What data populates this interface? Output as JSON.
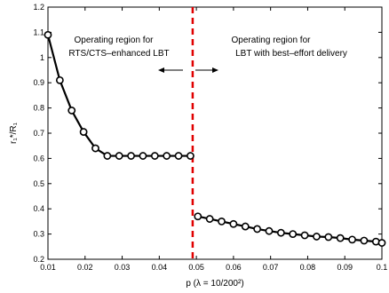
{
  "chart_data": {
    "type": "line",
    "xlabel": "p (λ = 10/200²)",
    "ylabel": "r₁*/R₁",
    "xlim": [
      0.01,
      0.1
    ],
    "ylim": [
      0.2,
      1.2
    ],
    "x_ticks": [
      0.01,
      0.02,
      0.03,
      0.04,
      0.05,
      0.06,
      0.07,
      0.08,
      0.09,
      0.1
    ],
    "x_tick_labels": [
      "0.01",
      "0.02",
      "0.03",
      "0.04",
      "0.05",
      "0.06",
      "0.07",
      "0.08",
      "0.09",
      "0.1"
    ],
    "y_ticks": [
      0.2,
      0.3,
      0.4,
      0.5,
      0.6,
      0.7,
      0.8,
      0.9,
      1.0,
      1.1,
      1.2
    ],
    "y_tick_labels": [
      "0.2",
      "0.3",
      "0.4",
      "0.5",
      "0.6",
      "0.7",
      "0.8",
      "0.9",
      "1",
      "1.1",
      "1.2"
    ],
    "grid": false,
    "series": [
      {
        "marker": "circle",
        "color": "#000000",
        "segments": [
          {
            "x": [
              0.01,
              0.0132,
              0.0164,
              0.0196,
              0.0228,
              0.026,
              0.0292,
              0.0324,
              0.0356,
              0.0388,
              0.042,
              0.0452,
              0.0484
            ],
            "y": [
              1.09,
              0.91,
              0.79,
              0.705,
              0.64,
              0.61,
              0.61,
              0.61,
              0.61,
              0.61,
              0.61,
              0.61,
              0.61
            ]
          },
          {
            "x": [
              0.0504,
              0.0536,
              0.0568,
              0.06,
              0.0632,
              0.0664,
              0.0696,
              0.0728,
              0.076,
              0.0792,
              0.0824,
              0.0856,
              0.0888,
              0.092,
              0.0952,
              0.0984,
              0.1
            ],
            "y": [
              0.37,
              0.36,
              0.35,
              0.34,
              0.33,
              0.32,
              0.312,
              0.305,
              0.3,
              0.295,
              0.29,
              0.288,
              0.284,
              0.278,
              0.274,
              0.27,
              0.265
            ]
          }
        ]
      }
    ],
    "divider": {
      "x": 0.049,
      "color": "#e00000",
      "style": "dashed"
    },
    "annotations": {
      "left": [
        "Operating region for",
        "RTS/CTS–enhanced LBT"
      ],
      "right": [
        "Operating region for",
        "LBT with best–effort delivery"
      ]
    }
  }
}
